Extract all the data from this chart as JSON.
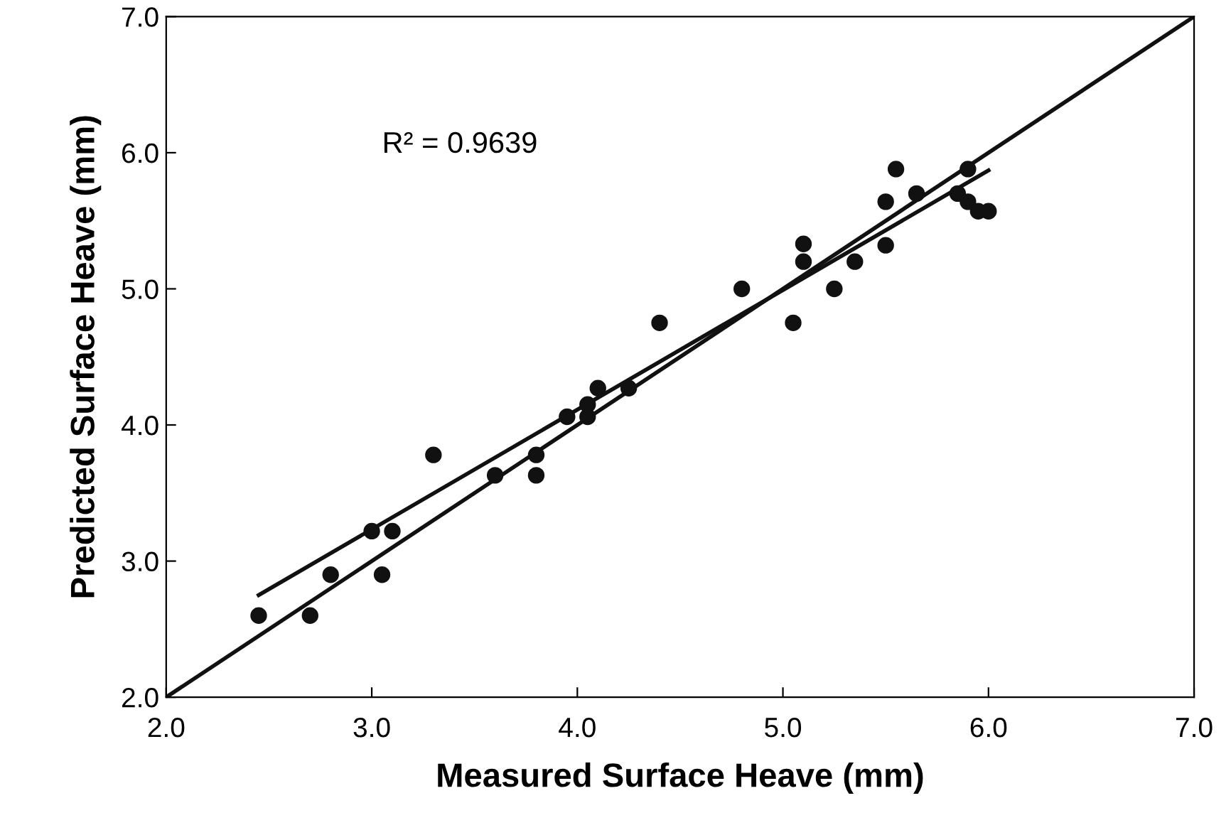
{
  "chart_data": {
    "type": "scatter",
    "xlabel": "Measured Surface Heave (mm)",
    "ylabel": "Predicted Surface Heave (mm)",
    "annotations": [
      "R² = 0.9639"
    ],
    "xlim": [
      2.0,
      7.0
    ],
    "ylim": [
      2.0,
      7.0
    ],
    "xticks": [
      {
        "value": 2.0,
        "label": "2.0"
      },
      {
        "value": 3.0,
        "label": "3.0"
      },
      {
        "value": 4.0,
        "label": "4.0"
      },
      {
        "value": 5.0,
        "label": "5.0"
      },
      {
        "value": 6.0,
        "label": "6.0"
      },
      {
        "value": 7.0,
        "label": "7.0"
      }
    ],
    "yticks": [
      {
        "value": 2.0,
        "label": "2.0"
      },
      {
        "value": 3.0,
        "label": "3.0"
      },
      {
        "value": 4.0,
        "label": "4.0"
      },
      {
        "value": 5.0,
        "label": "5.0"
      },
      {
        "value": 6.0,
        "label": "6.0"
      },
      {
        "value": 7.0,
        "label": "7.0"
      }
    ],
    "grid": false,
    "legend": false,
    "series": [
      {
        "marker": "circle",
        "color": "#111111",
        "x": [
          2.45,
          2.7,
          2.8,
          3.0,
          3.05,
          3.1,
          3.3,
          3.6,
          3.8,
          3.8,
          3.95,
          4.05,
          4.05,
          4.1,
          4.25,
          4.4,
          4.8,
          5.05,
          5.1,
          5.1,
          5.25,
          5.35,
          5.5,
          5.5,
          5.55,
          5.65,
          5.85,
          5.9,
          5.9,
          5.95,
          6.0
        ],
        "values": [
          2.6,
          2.6,
          2.9,
          3.22,
          2.9,
          3.22,
          3.78,
          3.63,
          3.78,
          3.63,
          4.06,
          4.15,
          4.06,
          4.27,
          4.27,
          4.75,
          5.0,
          4.75,
          5.33,
          5.2,
          5.0,
          5.2,
          5.64,
          5.32,
          5.88,
          5.7,
          5.7,
          5.88,
          5.64,
          5.57,
          5.57
        ]
      },
      {
        "type": "line",
        "marker": "none",
        "color": "#111111",
        "x": [
          2.0,
          7.0
        ],
        "values": [
          2.0,
          7.0
        ]
      },
      {
        "type": "line",
        "marker": "none",
        "color": "#111111",
        "x": [
          2.45,
          6.0
        ],
        "values": [
          2.75,
          5.87
        ]
      }
    ]
  }
}
